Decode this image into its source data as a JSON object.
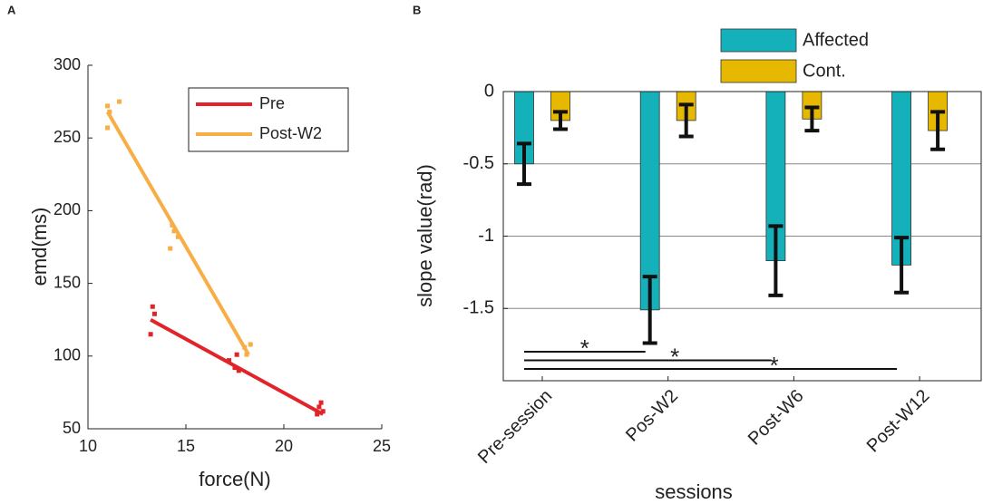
{
  "chart_data": [
    {
      "type": "scatter",
      "panel": "A",
      "xlabel": "force(N)",
      "ylabel": "emd(ms)",
      "xlim": [
        10,
        25
      ],
      "xticks": [
        10,
        15,
        20,
        25
      ],
      "ylim": [
        50,
        300
      ],
      "yticks": [
        50,
        100,
        150,
        200,
        250,
        300
      ],
      "legend": "upper right",
      "series": [
        {
          "name": "Pre",
          "color": "#e0242a",
          "x": [
            13.3,
            13.4,
            13.2,
            17.2,
            17.6,
            17.5,
            17.7,
            21.7,
            21.8,
            22.0,
            21.9
          ],
          "values": [
            134,
            129,
            115,
            97,
            101,
            92,
            90,
            60,
            65,
            62,
            68
          ],
          "fit_x": [
            13.2,
            22.0
          ],
          "fit_values": [
            125,
            60
          ]
        },
        {
          "name": "Post-W2",
          "color": "#f7ae45",
          "x": [
            11.0,
            11.1,
            11.0,
            11.6,
            14.3,
            14.2,
            14.6,
            14.4,
            18.1,
            18.3,
            18.0
          ],
          "values": [
            272,
            268,
            257,
            275,
            190,
            174,
            182,
            186,
            101,
            108,
            106
          ],
          "fit_x": [
            11.0,
            18.2
          ],
          "fit_values": [
            268,
            101
          ]
        }
      ]
    },
    {
      "type": "bar",
      "panel": "B",
      "xlabel": "sessions",
      "ylabel": "slope value(rad)",
      "categories": [
        "Pre-session",
        "Pos-W2",
        "Post-W6",
        "Post-W12"
      ],
      "ylim": [
        -2,
        0
      ],
      "yticks": [
        0,
        -0.5,
        -1,
        -1.5
      ],
      "grid": true,
      "legend": "top",
      "series": [
        {
          "name": "Affected",
          "color": "#14b1bb",
          "values": [
            -0.5,
            -1.51,
            -1.17,
            -1.2
          ],
          "errors": [
            0.14,
            0.23,
            0.24,
            0.19
          ]
        },
        {
          "name": "Cont.",
          "color": "#e6b800",
          "values": [
            -0.2,
            -0.2,
            -0.19,
            -0.27
          ],
          "errors": [
            0.06,
            0.11,
            0.08,
            0.13
          ]
        }
      ],
      "significance": [
        {
          "from": 0,
          "to": 1,
          "label": "*"
        },
        {
          "from": 0,
          "to": 2,
          "label": "*"
        },
        {
          "from": 0,
          "to": 3,
          "label": "*"
        }
      ]
    }
  ]
}
